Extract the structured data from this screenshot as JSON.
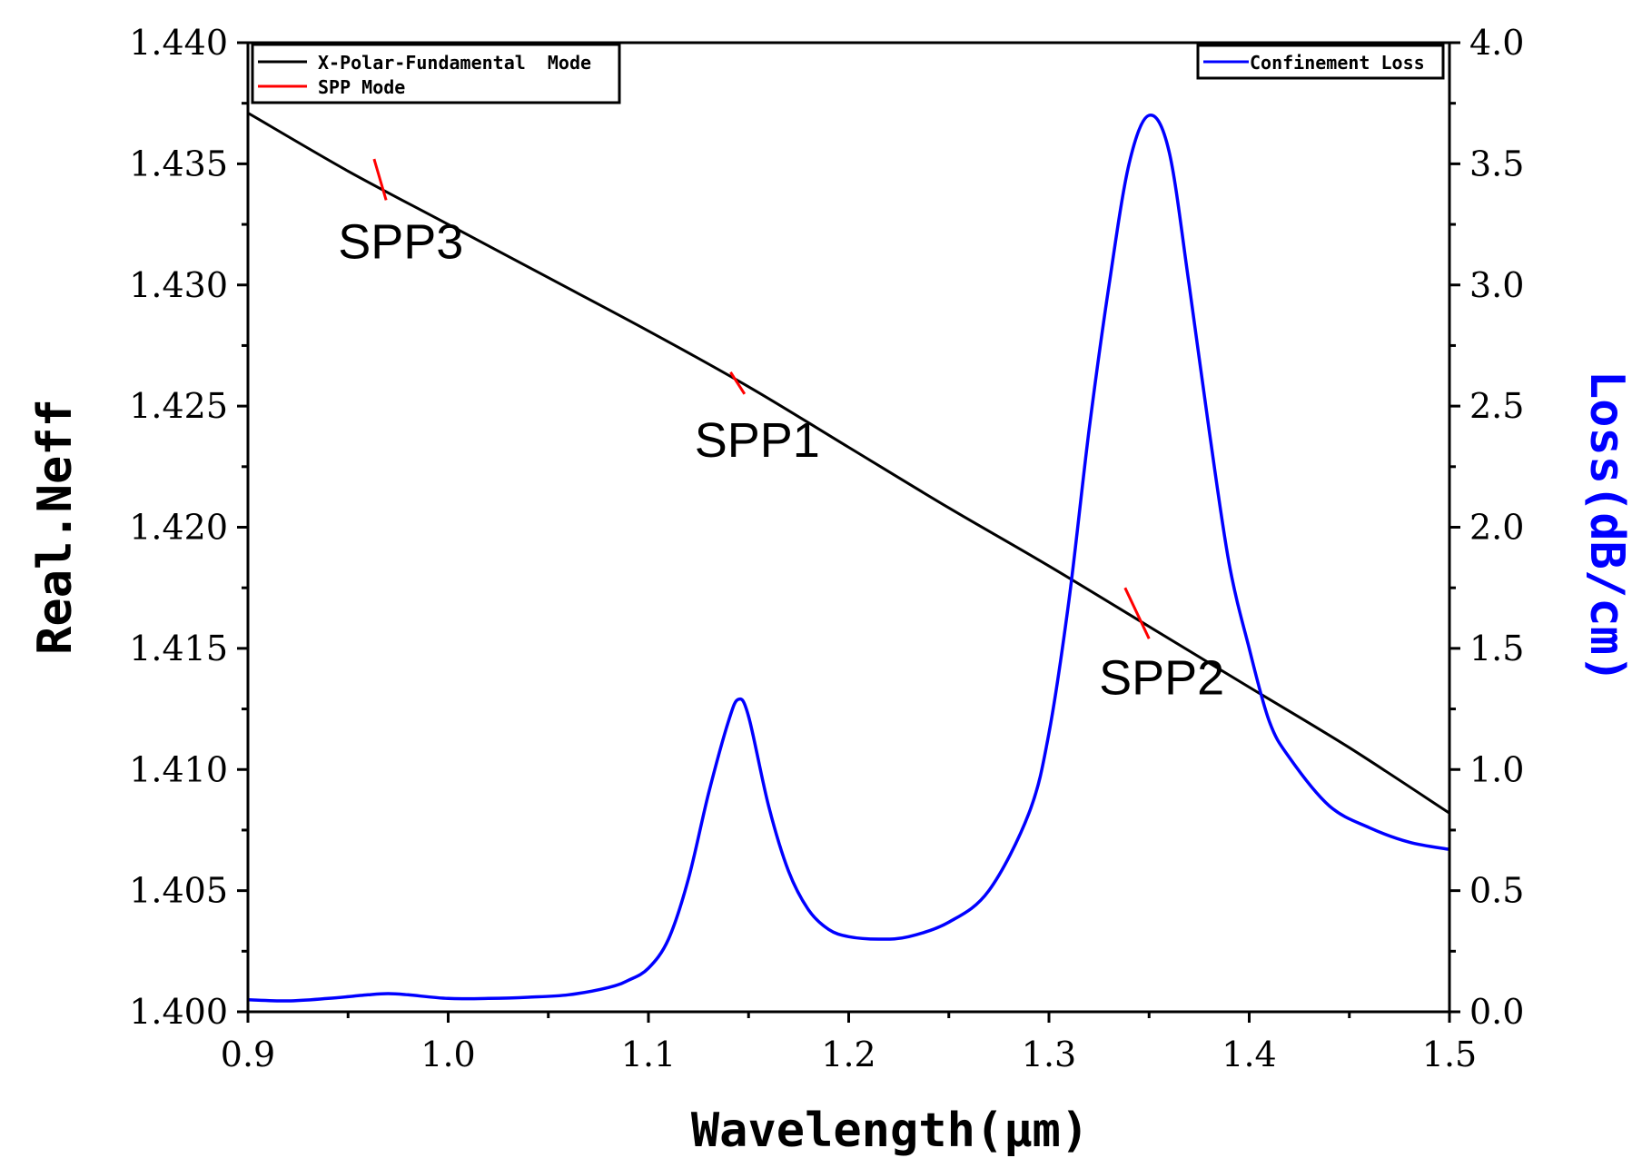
{
  "chart_data": {
    "type": "line",
    "x_axis": {
      "label": "Wavelength(μm)",
      "range": [
        0.9,
        1.5
      ],
      "ticks": [
        "0.9",
        "1.0",
        "1.1",
        "1.2",
        "1.3",
        "1.4",
        "1.5"
      ],
      "tick_values": [
        0.9,
        1.0,
        1.1,
        1.2,
        1.3,
        1.4,
        1.5
      ]
    },
    "y_left": {
      "label": "Real.Neff",
      "range": [
        1.4,
        1.44
      ],
      "ticks": [
        "1.400",
        "1.405",
        "1.410",
        "1.415",
        "1.420",
        "1.425",
        "1.430",
        "1.435",
        "1.440"
      ],
      "tick_values": [
        1.4,
        1.405,
        1.41,
        1.415,
        1.42,
        1.425,
        1.43,
        1.435,
        1.44
      ]
    },
    "y_right": {
      "label": "Loss(dB/cm)",
      "color": "#0000ff",
      "range": [
        0,
        4
      ],
      "ticks": [
        "0.0",
        "0.5",
        "1.0",
        "1.5",
        "2.0",
        "2.5",
        "3.0",
        "3.5",
        "4.0"
      ],
      "tick_values": [
        0,
        0.5,
        1,
        1.5,
        2,
        2.5,
        3,
        3.5,
        4
      ]
    },
    "series": [
      {
        "name": "X-Polar-Fundamental  Mode",
        "axis": "left",
        "color": "#000000",
        "x": [
          0.9,
          0.95,
          1.0,
          1.05,
          1.1,
          1.15,
          1.2,
          1.25,
          1.3,
          1.35,
          1.4,
          1.45,
          1.5
        ],
        "y": [
          1.4371,
          1.4347,
          1.4325,
          1.4303,
          1.4281,
          1.4258,
          1.4233,
          1.4208,
          1.4184,
          1.4159,
          1.4134,
          1.4109,
          1.4082
        ]
      },
      {
        "name": "Confinement Loss",
        "axis": "right",
        "color": "#0000ff",
        "x": [
          0.9,
          0.92,
          0.94,
          0.96,
          0.97,
          0.98,
          1.0,
          1.02,
          1.04,
          1.06,
          1.08,
          1.09,
          1.1,
          1.11,
          1.12,
          1.13,
          1.14,
          1.145,
          1.15,
          1.16,
          1.17,
          1.18,
          1.19,
          1.2,
          1.215,
          1.23,
          1.25,
          1.27,
          1.29,
          1.3,
          1.31,
          1.32,
          1.33,
          1.34,
          1.35,
          1.36,
          1.37,
          1.38,
          1.39,
          1.4,
          1.41,
          1.42,
          1.44,
          1.46,
          1.48,
          1.5
        ],
        "y": [
          0.05,
          0.045,
          0.055,
          0.07,
          0.075,
          0.07,
          0.055,
          0.055,
          0.06,
          0.07,
          0.1,
          0.13,
          0.18,
          0.3,
          0.55,
          0.9,
          1.2,
          1.29,
          1.22,
          0.85,
          0.58,
          0.42,
          0.34,
          0.31,
          0.3,
          0.31,
          0.37,
          0.5,
          0.82,
          1.15,
          1.7,
          2.4,
          3.0,
          3.5,
          3.7,
          3.55,
          3.0,
          2.4,
          1.85,
          1.5,
          1.2,
          1.05,
          0.85,
          0.76,
          0.7,
          0.67
        ]
      },
      {
        "name": "SPP Mode",
        "axis": "left",
        "color": "#ff0000",
        "segments": [
          {
            "x": [
              0.963,
              0.969
            ],
            "y": [
              1.4352,
              1.4335
            ]
          },
          {
            "x": [
              1.141,
              1.148
            ],
            "y": [
              1.4264,
              1.4255
            ]
          },
          {
            "x": [
              1.338,
              1.35
            ],
            "y": [
              1.4175,
              1.4154
            ]
          }
        ]
      }
    ],
    "annotations": [
      {
        "text": "SPP3",
        "x": 0.945,
        "y": 1.4311
      },
      {
        "text": "SPP1",
        "x": 1.123,
        "y": 1.4229
      },
      {
        "text": "SPP2",
        "x": 1.325,
        "y": 1.4131
      }
    ],
    "legends": [
      {
        "position": "top-left",
        "entries": [
          {
            "label": "X-Polar-Fundamental  Mode",
            "color": "#000000"
          },
          {
            "label": "SPP Mode",
            "color": "#ff0000"
          }
        ]
      },
      {
        "position": "top-right",
        "entries": [
          {
            "label": "Confinement Loss",
            "color": "#0000ff"
          }
        ]
      }
    ]
  }
}
